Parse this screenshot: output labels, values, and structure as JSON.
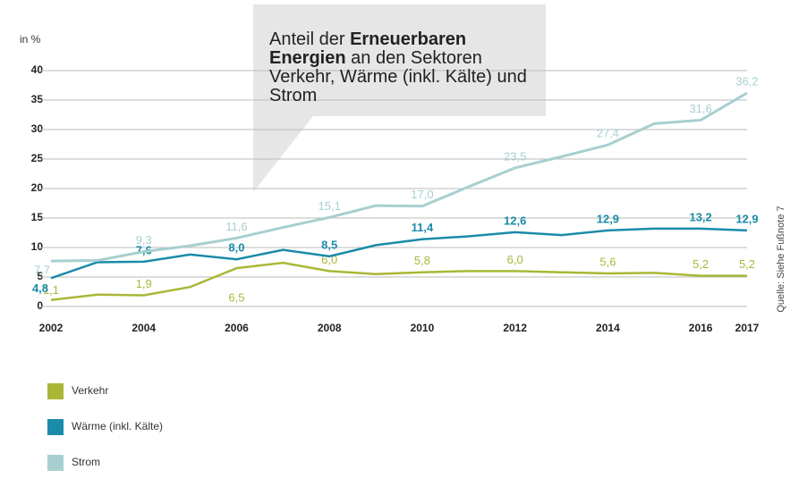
{
  "chart_data": {
    "type": "line",
    "title_parts": [
      "Anteil der",
      "Erneuerbaren Energien",
      "an den Sektoren Verkehr, Wärme (inkl. Kälte) und Strom"
    ],
    "ylabel": "in %",
    "source": "Quelle: Siehe Fußnote 7",
    "x": [
      2002,
      2003,
      2004,
      2005,
      2006,
      2007,
      2008,
      2009,
      2010,
      2011,
      2012,
      2013,
      2014,
      2015,
      2016,
      2017
    ],
    "xlim": [
      2002,
      2017
    ],
    "xticks": [
      2002,
      2004,
      2006,
      2008,
      2010,
      2012,
      2014,
      2016,
      2017
    ],
    "ylim": [
      0,
      40
    ],
    "yticks": [
      0,
      5,
      10,
      15,
      20,
      25,
      30,
      35,
      40
    ],
    "grid": true,
    "series": [
      {
        "name": "Verkehr",
        "color": "#a9b737",
        "values": [
          1.1,
          2.0,
          1.9,
          3.3,
          6.5,
          7.4,
          6.0,
          5.5,
          5.8,
          6.0,
          6.0,
          5.8,
          5.6,
          5.7,
          5.2,
          5.2
        ],
        "value_labels": [
          "1,1",
          null,
          "1,9",
          null,
          "6,5",
          null,
          "6,0",
          null,
          "5,8",
          null,
          "6,0",
          null,
          "5,6",
          null,
          "5,2",
          "5,2"
        ]
      },
      {
        "name": "Wärme (inkl. Kälte)",
        "color": "#1a8ba8",
        "values": [
          4.8,
          7.5,
          7.6,
          8.8,
          8.0,
          9.6,
          8.5,
          10.4,
          11.4,
          11.9,
          12.6,
          12.1,
          12.9,
          13.2,
          13.2,
          12.9
        ],
        "value_labels": [
          "4,8",
          null,
          "7,6",
          null,
          "8,0",
          null,
          "8,5",
          null,
          "11,4",
          null,
          "12,6",
          null,
          "12,9",
          null,
          "13,2",
          "12,9"
        ]
      },
      {
        "name": "Strom",
        "color": "#a7cfd0",
        "values": [
          7.7,
          7.8,
          9.3,
          10.3,
          11.6,
          13.4,
          15.1,
          17.1,
          17.0,
          20.3,
          23.5,
          25.4,
          27.4,
          31.0,
          31.6,
          36.2
        ],
        "value_labels": [
          "7,7",
          null,
          "9,3",
          null,
          "11,6",
          null,
          "15,1",
          null,
          "17,0",
          null,
          "23,5",
          null,
          "27,4",
          null,
          "31,6",
          "36,2"
        ]
      }
    ]
  }
}
